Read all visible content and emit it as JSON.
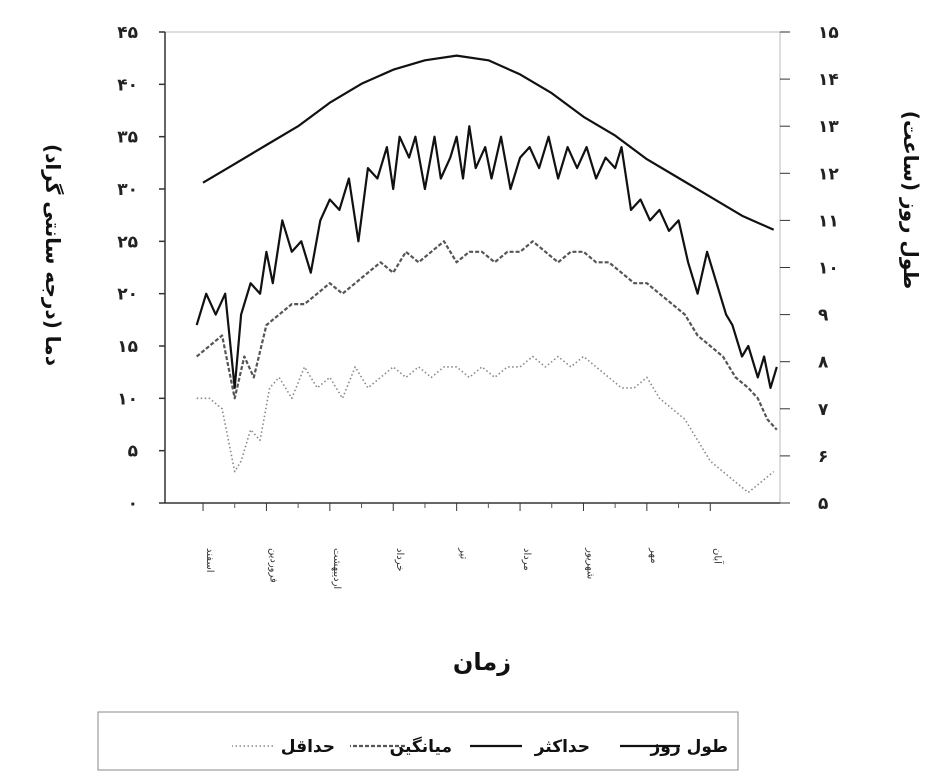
{
  "chart_data": {
    "type": "line",
    "xlabel": "زمان",
    "ylabel_left": "دما (درجه سانتی گراد)",
    "ylabel_right": "طول روز (ساعت)",
    "categories": [
      "اسفند",
      "فروردین",
      "اردیبهشت",
      "خرداد",
      "تیر",
      "مرداد",
      "شهریور",
      "مهر",
      "آبان"
    ],
    "ylim_left": [
      0,
      45
    ],
    "ylim_right": [
      5,
      15
    ],
    "yticks_left": [
      "۰",
      "۵",
      "۱۰",
      "۱۵",
      "۲۰",
      "۲۵",
      "۳۰",
      "۳۵",
      "۴۰",
      "۴۵"
    ],
    "yticks_right": [
      "۵",
      "۶",
      "۷",
      "۸",
      "۹",
      "۱۰",
      "۱۱",
      "۱۲",
      "۱۳",
      "۱۴",
      "۱۵"
    ],
    "x_range_months": [
      -0.6,
      9.1
    ],
    "grid": false,
    "legend": "bottom",
    "series": [
      {
        "name": "طول روز",
        "axis": "right",
        "style": "solid",
        "color": "#111111",
        "x": [
          0.0,
          0.5,
          1.0,
          1.5,
          2.0,
          2.5,
          3.0,
          3.5,
          4.0,
          4.5,
          5.0,
          5.5,
          6.0,
          6.5,
          7.0,
          7.5,
          8.0,
          8.5,
          9.0
        ],
        "values": [
          11.8,
          12.2,
          12.6,
          13.0,
          13.5,
          13.9,
          14.2,
          14.4,
          14.5,
          14.4,
          14.1,
          13.7,
          13.2,
          12.8,
          12.3,
          11.9,
          11.5,
          11.1,
          10.8
        ]
      },
      {
        "name": "حداکثر",
        "axis": "left",
        "style": "solid",
        "color": "#111111",
        "x": [
          -0.1,
          0.05,
          0.2,
          0.35,
          0.5,
          0.6,
          0.75,
          0.9,
          1.0,
          1.1,
          1.25,
          1.4,
          1.55,
          1.7,
          1.85,
          2.0,
          2.15,
          2.3,
          2.45,
          2.6,
          2.75,
          2.9,
          3.0,
          3.1,
          3.25,
          3.35,
          3.5,
          3.65,
          3.75,
          3.9,
          4.0,
          4.1,
          4.2,
          4.3,
          4.45,
          4.55,
          4.7,
          4.85,
          5.0,
          5.15,
          5.3,
          5.45,
          5.6,
          5.75,
          5.9,
          6.05,
          6.2,
          6.35,
          6.5,
          6.6,
          6.75,
          6.9,
          7.05,
          7.2,
          7.35,
          7.5,
          7.65,
          7.8,
          7.95,
          8.1,
          8.25,
          8.35,
          8.5,
          8.6,
          8.75,
          8.85,
          8.95,
          9.05
        ],
        "values": [
          17,
          20,
          18,
          20,
          11,
          18,
          21,
          20,
          24,
          21,
          27,
          24,
          25,
          22,
          27,
          29,
          28,
          31,
          25,
          32,
          31,
          34,
          30,
          35,
          33,
          35,
          30,
          35,
          31,
          33,
          35,
          31,
          36,
          32,
          34,
          31,
          35,
          30,
          33,
          34,
          32,
          35,
          31,
          34,
          32,
          34,
          31,
          33,
          32,
          34,
          28,
          29,
          27,
          28,
          26,
          27,
          23,
          20,
          24,
          21,
          18,
          17,
          14,
          15,
          12,
          14,
          11,
          13
        ]
      },
      {
        "name": "میانگین",
        "axis": "left",
        "style": "dashed",
        "color": "#555555",
        "x": [
          -0.1,
          0.1,
          0.3,
          0.5,
          0.65,
          0.8,
          1.0,
          1.2,
          1.4,
          1.6,
          1.8,
          2.0,
          2.2,
          2.4,
          2.6,
          2.8,
          3.0,
          3.2,
          3.4,
          3.6,
          3.8,
          4.0,
          4.2,
          4.4,
          4.6,
          4.8,
          5.0,
          5.2,
          5.4,
          5.6,
          5.8,
          6.0,
          6.2,
          6.4,
          6.6,
          6.8,
          7.0,
          7.2,
          7.4,
          7.6,
          7.8,
          8.0,
          8.2,
          8.4,
          8.6,
          8.75,
          8.9,
          9.05
        ],
        "values": [
          14,
          15,
          16,
          10,
          14,
          12,
          17,
          18,
          19,
          19,
          20,
          21,
          20,
          21,
          22,
          23,
          22,
          24,
          23,
          24,
          25,
          23,
          24,
          24,
          23,
          24,
          24,
          25,
          24,
          23,
          24,
          24,
          23,
          23,
          22,
          21,
          21,
          20,
          19,
          18,
          16,
          15,
          14,
          12,
          11,
          10,
          8,
          7
        ]
      },
      {
        "name": "حداقل",
        "axis": "left",
        "style": "dotted",
        "color": "#888888",
        "x": [
          -0.1,
          0.1,
          0.3,
          0.5,
          0.6,
          0.75,
          0.9,
          1.05,
          1.2,
          1.4,
          1.6,
          1.8,
          2.0,
          2.2,
          2.4,
          2.6,
          2.8,
          3.0,
          3.2,
          3.4,
          3.6,
          3.8,
          4.0,
          4.2,
          4.4,
          4.6,
          4.8,
          5.0,
          5.2,
          5.4,
          5.6,
          5.8,
          6.0,
          6.2,
          6.4,
          6.6,
          6.8,
          7.0,
          7.2,
          7.4,
          7.6,
          7.8,
          8.0,
          8.2,
          8.4,
          8.6,
          8.8,
          9.0
        ],
        "values": [
          10,
          10,
          9,
          3,
          4,
          7,
          6,
          11,
          12,
          10,
          13,
          11,
          12,
          10,
          13,
          11,
          12,
          13,
          12,
          13,
          12,
          13,
          13,
          12,
          13,
          12,
          13,
          13,
          14,
          13,
          14,
          13,
          14,
          13,
          12,
          11,
          11,
          12,
          10,
          9,
          8,
          6,
          4,
          3,
          2,
          1,
          2,
          3
        ]
      }
    ]
  }
}
